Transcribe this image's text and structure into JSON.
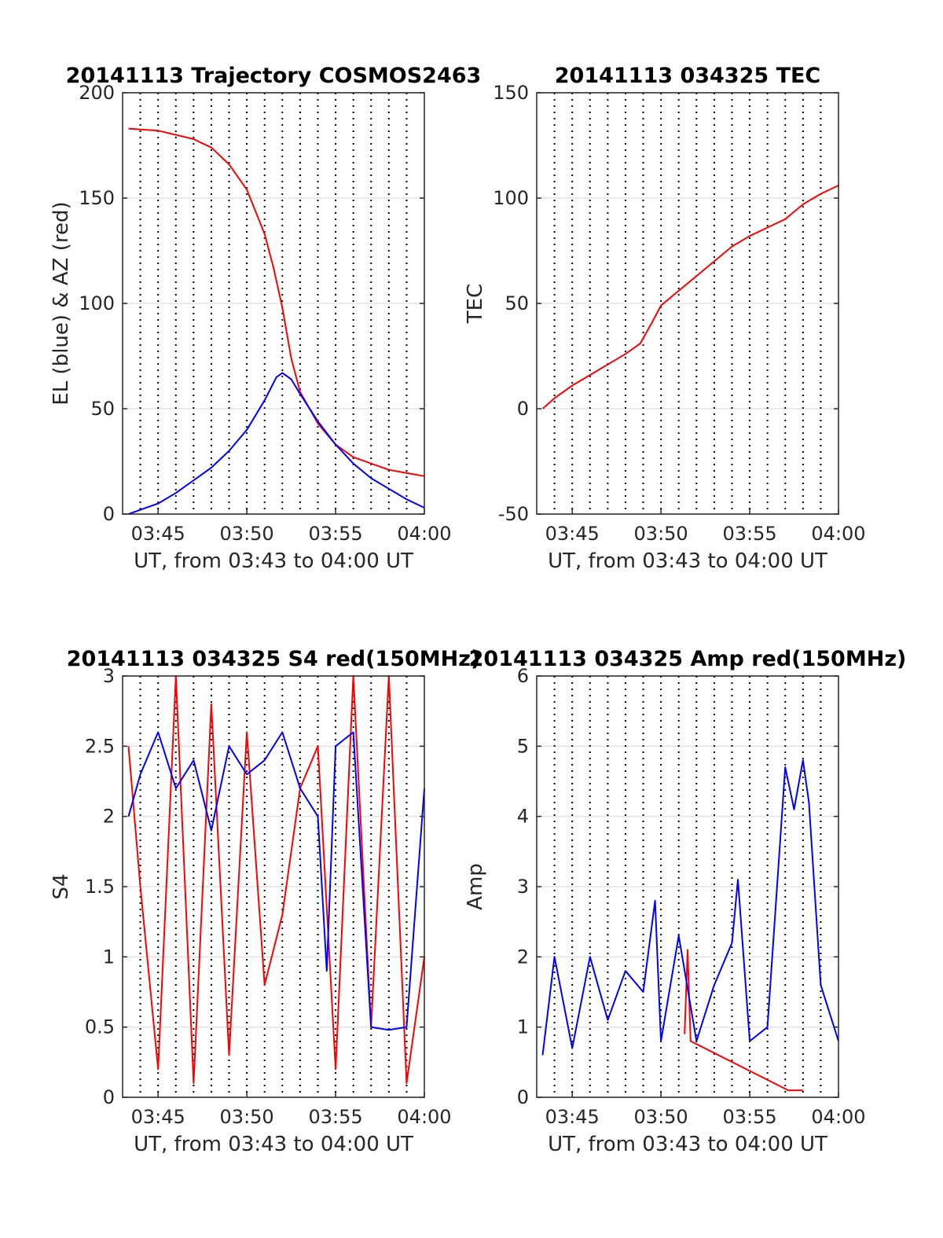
{
  "chart_data": [
    {
      "type": "line",
      "title": "20141113 Trajectory COSMOS2463",
      "xlabel": "UT, from 03:43 to 04:00 UT",
      "ylabel": "EL (blue) & AZ (red)",
      "xlim": [
        "03:43",
        "04:00"
      ],
      "ylim": [
        0,
        200
      ],
      "xticks": [
        "03:45",
        "03:50",
        "03:55",
        "04:00"
      ],
      "yticks": [
        "0",
        "50",
        "100",
        "150",
        "200"
      ],
      "grid": "minute dotted verticals, light horizontal gridlines",
      "series": [
        {
          "color": "#ff0000",
          "x": [
            "03:43:20",
            "03:45:00",
            "03:47:00",
            "03:48:00",
            "03:49:00",
            "03:50:00",
            "03:51:00",
            "03:51:30",
            "03:52:00",
            "03:52:30",
            "03:53:00",
            "03:54:00",
            "03:55:00",
            "03:56:00",
            "03:57:00",
            "03:58:00",
            "04:00:00"
          ],
          "values": [
            183,
            182,
            178,
            174,
            166,
            154,
            133,
            117,
            98,
            74,
            58,
            43,
            33,
            27,
            24,
            21,
            18
          ]
        },
        {
          "color": "#0000ff",
          "x": [
            "03:43:20",
            "03:44:00",
            "03:45:00",
            "03:46:00",
            "03:47:00",
            "03:48:00",
            "03:49:00",
            "03:50:00",
            "03:51:00",
            "03:51:40",
            "03:52:00",
            "03:52:30",
            "03:53:00",
            "03:54:00",
            "03:55:00",
            "03:56:00",
            "03:57:00",
            "03:58:00",
            "03:59:00",
            "04:00:00"
          ],
          "values": [
            0,
            2,
            5,
            10,
            16,
            22,
            30,
            40,
            54,
            65,
            67,
            64,
            57,
            44,
            33,
            24,
            17,
            12,
            7,
            3
          ]
        }
      ]
    },
    {
      "type": "line",
      "title": "20141113 034325 TEC",
      "xlabel": "UT, from 03:43 to 04:00 UT",
      "ylabel": "TEC",
      "xlim": [
        "03:43",
        "04:00"
      ],
      "ylim": [
        -50,
        150
      ],
      "xticks": [
        "03:45",
        "03:50",
        "03:55",
        "04:00"
      ],
      "yticks": [
        "-50",
        "0",
        "50",
        "100",
        "150"
      ],
      "series": [
        {
          "color": "#ff0000",
          "x": [
            "03:43:20",
            "03:44:00",
            "03:45:00",
            "03:46:00",
            "03:47:00",
            "03:48:00",
            "03:48:50",
            "03:49:30",
            "03:50:00",
            "03:51:00",
            "03:52:00",
            "03:53:00",
            "03:54:00",
            "03:55:00",
            "03:56:00",
            "03:57:00",
            "03:58:00",
            "03:59:00",
            "04:00:00"
          ],
          "values": [
            0,
            5,
            11,
            16,
            21,
            26,
            31,
            41,
            49,
            56,
            63,
            70,
            77,
            82,
            86,
            90,
            97,
            102,
            106
          ]
        }
      ]
    },
    {
      "type": "line",
      "title": "20141113 034325 S4 red(150MHz)",
      "xlabel": "UT, from 03:43 to 04:00 UT",
      "ylabel": "S4",
      "xlim": [
        "03:43",
        "04:00"
      ],
      "ylim": [
        0,
        3
      ],
      "xticks": [
        "03:45",
        "03:50",
        "03:55",
        "04:00"
      ],
      "yticks": [
        "0",
        "0.5",
        "1",
        "1.5",
        "2",
        "2.5",
        "3"
      ],
      "series": [
        {
          "color": "#ff0000",
          "note_values": "dense noisy trace oscillating between 0 and 3",
          "x": [
            "03:43:20",
            "03:44:00",
            "03:45:00",
            "03:46:00",
            "03:47:00",
            "03:48:00",
            "03:49:00",
            "03:50:00",
            "03:51:00",
            "03:52:00",
            "03:53:00",
            "03:54:00",
            "03:55:00",
            "03:56:00",
            "03:57:00",
            "03:58:00",
            "03:59:00",
            "04:00:00"
          ],
          "values": [
            2.5,
            1.5,
            0.2,
            3.0,
            0.1,
            2.8,
            0.3,
            2.6,
            0.8,
            1.3,
            2.2,
            2.5,
            0.2,
            3.0,
            0.5,
            3.0,
            0.1,
            1.0
          ]
        },
        {
          "color": "#0000ff",
          "x": [
            "03:43:20",
            "03:44:00",
            "03:45:00",
            "03:46:00",
            "03:47:00",
            "03:48:00",
            "03:49:00",
            "03:50:00",
            "03:51:00",
            "03:52:00",
            "03:53:00",
            "03:54:00",
            "03:54:30",
            "03:55:00",
            "03:56:00",
            "03:57:00",
            "03:58:00",
            "03:59:00",
            "04:00:00"
          ],
          "values": [
            2.0,
            2.3,
            2.6,
            2.2,
            2.4,
            1.9,
            2.5,
            2.3,
            2.4,
            2.6,
            2.2,
            2.0,
            0.9,
            2.5,
            2.6,
            0.5,
            0.48,
            0.5,
            2.2
          ]
        }
      ]
    },
    {
      "type": "line",
      "title": "20141113 034325 Amp red(150MHz)",
      "xlabel": "UT, from 03:43 to 04:00 UT",
      "ylabel": "Amp",
      "xlim": [
        "03:43",
        "04:00"
      ],
      "ylim": [
        0,
        6
      ],
      "xticks": [
        "03:45",
        "03:50",
        "03:55",
        "04:00"
      ],
      "yticks": [
        "0",
        "1",
        "2",
        "3",
        "4",
        "5",
        "6"
      ],
      "series": [
        {
          "color": "#ff0000",
          "x": [
            "03:51:20",
            "03:51:30",
            "03:51:40",
            "03:57:10",
            "03:58:00"
          ],
          "values": [
            0.9,
            2.1,
            0.8,
            0.1,
            0.1
          ]
        },
        {
          "color": "#0000ff",
          "note_values": "dense noisy amplitude trace",
          "x": [
            "03:43:20",
            "03:44:00",
            "03:45:00",
            "03:46:00",
            "03:47:00",
            "03:48:00",
            "03:49:00",
            "03:49:40",
            "03:50:00",
            "03:51:00",
            "03:52:00",
            "03:53:00",
            "03:54:00",
            "03:54:20",
            "03:55:00",
            "03:56:00",
            "03:57:00",
            "03:57:30",
            "03:58:00",
            "03:58:20",
            "03:59:00",
            "04:00:00"
          ],
          "values": [
            0.6,
            2.0,
            0.7,
            2.0,
            1.1,
            1.8,
            1.5,
            2.8,
            0.8,
            2.3,
            0.8,
            1.6,
            2.2,
            3.1,
            0.8,
            1.0,
            4.7,
            4.1,
            4.8,
            4.2,
            1.6,
            0.8
          ]
        }
      ]
    }
  ]
}
